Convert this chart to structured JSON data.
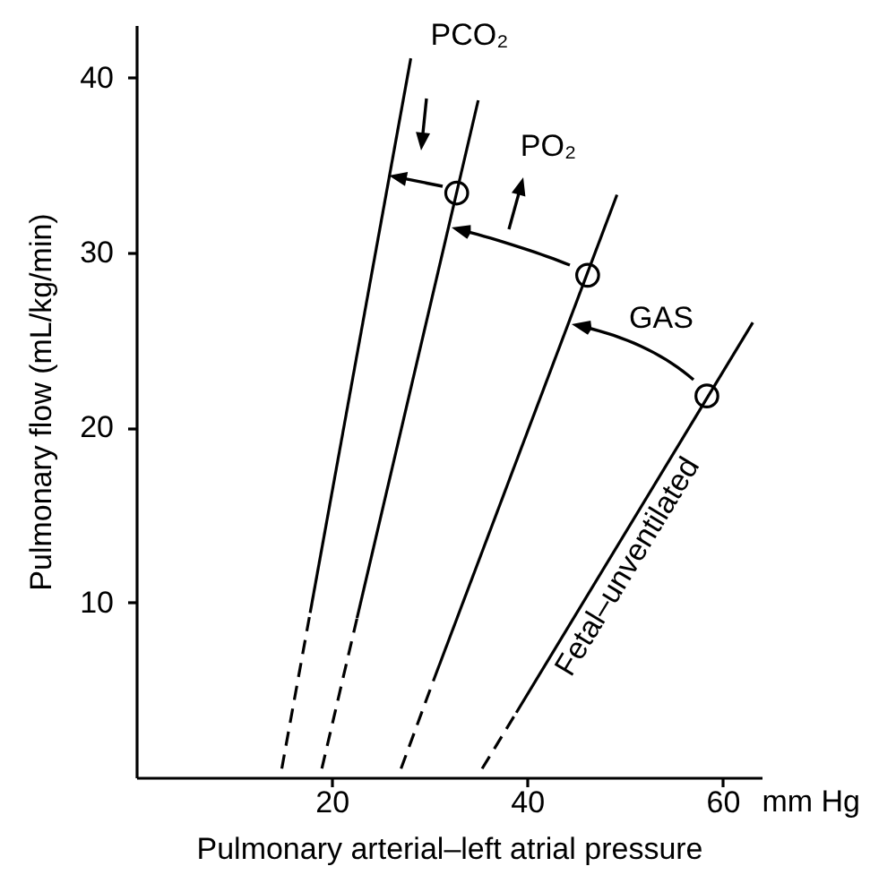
{
  "chart_data": {
    "type": "line",
    "xlabel": "Pulmonary arterial–left atrial pressure",
    "ylabel": "Pulmonary flow (mL/kg/min)",
    "xlim": [
      0,
      64
    ],
    "ylim": [
      0,
      43
    ],
    "xticks": [
      20,
      40,
      60
    ],
    "yticks": [
      10,
      20,
      30,
      40
    ],
    "grid": false,
    "annotations": [
      "mm Hg",
      "PCO₂",
      "PO₂",
      "GAS"
    ],
    "series": [
      {
        "color": "#000000",
        "x": [
          17.8,
          28.1
        ],
        "values": [
          9.4,
          41.1
        ]
      },
      {
        "color": "#000000",
        "line_style": "dashed",
        "x": [
          14.9,
          17.8
        ],
        "values": [
          0.5,
          9.4
        ]
      },
      {
        "color": "#000000",
        "x": [
          22.6,
          35.0
        ],
        "values": [
          9.1,
          38.7
        ]
      },
      {
        "color": "#000000",
        "line_style": "dashed",
        "x": [
          19.0,
          22.6
        ],
        "values": [
          0.5,
          9.1
        ]
      },
      {
        "color": "#000000",
        "x": [
          30.4,
          49.2
        ],
        "values": [
          5.5,
          33.3
        ]
      },
      {
        "color": "#000000",
        "line_style": "dashed",
        "x": [
          27.1,
          30.4
        ],
        "values": [
          0.5,
          5.5
        ]
      },
      {
        "name": "Fetal–unventilated",
        "color": "#000000",
        "x": [
          38.9,
          63.1
        ],
        "values": [
          3.7,
          26.0
        ]
      },
      {
        "color": "#000000",
        "line_style": "dashed",
        "x": [
          35.4,
          38.9
        ],
        "values": [
          0.5,
          3.7
        ]
      },
      {
        "type": "scatter",
        "color": "#000000",
        "marker": "circle",
        "x": [
          32.8,
          46.2,
          58.4
        ],
        "values": [
          33.4,
          28.7,
          21.8
        ]
      }
    ]
  }
}
